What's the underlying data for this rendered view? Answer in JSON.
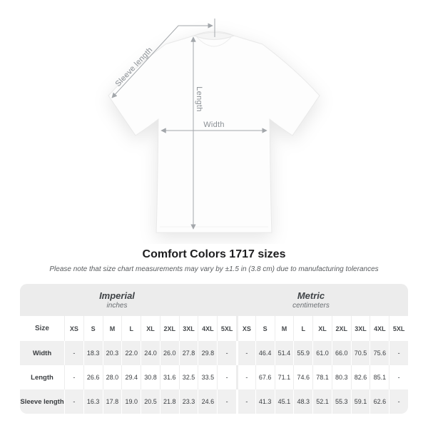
{
  "diagram": {
    "labels": {
      "sleeve": "Sleeve length",
      "length": "Length",
      "width": "Width"
    }
  },
  "title": "Comfort Colors 1717 sizes",
  "note": "Please note that size chart measurements may vary by ±1.5 in (3.8 cm) due to manufacturing tolerances",
  "table": {
    "unit_groups": [
      {
        "label": "Imperial",
        "sublabel": "inches"
      },
      {
        "label": "Metric",
        "sublabel": "centimeters"
      }
    ],
    "size_col_header": "Size",
    "sizes": [
      "XS",
      "S",
      "M",
      "L",
      "XL",
      "2XL",
      "3XL",
      "4XL",
      "5XL"
    ],
    "rows": [
      {
        "label": "Width",
        "imperial": [
          "-",
          "18.3",
          "20.3",
          "22.0",
          "24.0",
          "26.0",
          "27.8",
          "29.8",
          "-"
        ],
        "metric": [
          "-",
          "46.4",
          "51.4",
          "55.9",
          "61.0",
          "66.0",
          "70.5",
          "75.6",
          "-"
        ]
      },
      {
        "label": "Length",
        "imperial": [
          "-",
          "26.6",
          "28.0",
          "29.4",
          "30.8",
          "31.6",
          "32.5",
          "33.5",
          "-"
        ],
        "metric": [
          "-",
          "67.6",
          "71.1",
          "74.6",
          "78.1",
          "80.3",
          "82.6",
          "85.1",
          "-"
        ]
      },
      {
        "label": "Sleeve length",
        "imperial": [
          "-",
          "16.3",
          "17.8",
          "19.0",
          "20.5",
          "21.8",
          "23.3",
          "24.6",
          "-"
        ],
        "metric": [
          "-",
          "41.3",
          "45.1",
          "48.3",
          "52.1",
          "55.3",
          "59.1",
          "62.6",
          "-"
        ]
      }
    ]
  },
  "colors": {
    "band_bg": "#ececec",
    "row_alt_bg": "#f0f0f0",
    "dimension_line": "#a3a7ab",
    "title_text": "#1d1d1f",
    "note_text": "#5a5d60",
    "cell_text": "#3a3d40"
  }
}
